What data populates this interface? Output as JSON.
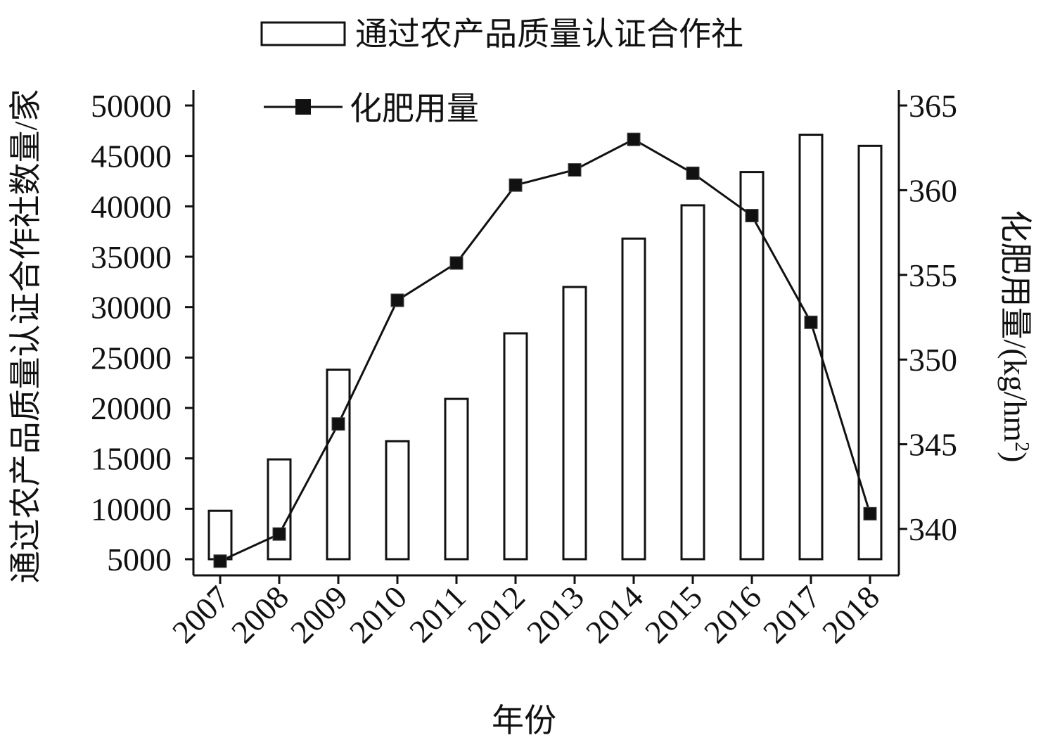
{
  "chart_data": {
    "type": "bar+line",
    "categories": [
      "2007",
      "2008",
      "2009",
      "2010",
      "2011",
      "2012",
      "2013",
      "2014",
      "2015",
      "2016",
      "2017",
      "2018"
    ],
    "xlabel": "年份",
    "series": [
      {
        "name": "通过农产品质量认证合作社",
        "type": "bar",
        "axis": "left",
        "values": [
          9800,
          14900,
          23800,
          16700,
          20900,
          27400,
          32000,
          36800,
          40100,
          43400,
          47100,
          46000
        ]
      },
      {
        "name": "化肥用量",
        "type": "line",
        "axis": "right",
        "values": [
          338.1,
          339.7,
          346.2,
          353.5,
          355.7,
          360.3,
          361.2,
          363.0,
          361.0,
          358.5,
          352.2,
          340.9
        ]
      }
    ],
    "y_left": {
      "label": "通过农产品质量认证合作社数量/家",
      "ylim": [
        5000,
        50000
      ],
      "ticks": [
        "5000",
        "10000",
        "15000",
        "20000",
        "25000",
        "30000",
        "35000",
        "40000",
        "45000",
        "50000"
      ]
    },
    "y_right": {
      "label_main": "化肥用量/(kg/hm",
      "label_sup": "2",
      "label_close": ")",
      "ylim": [
        340,
        365
      ],
      "ticks": [
        "340",
        "345",
        "350",
        "355",
        "360",
        "365"
      ]
    },
    "legend": {
      "position": "top-center",
      "items": [
        {
          "label": "通过农产品质量认证合作社",
          "marker": "bar"
        },
        {
          "label": "化肥用量",
          "marker": "line-square"
        }
      ]
    },
    "colors": {
      "bar_fill": "#ffffff",
      "stroke": "#111111",
      "marker": "#111111"
    }
  }
}
